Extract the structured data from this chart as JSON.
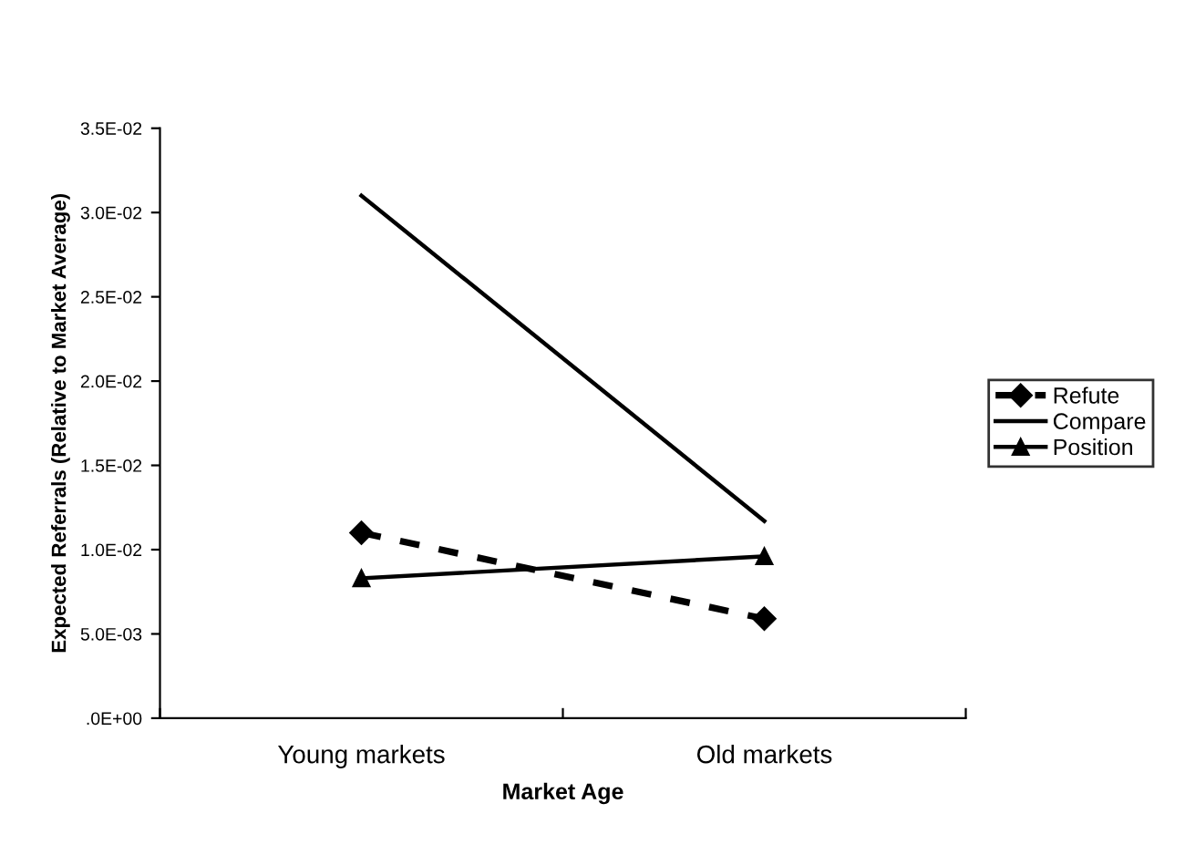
{
  "chart_data": {
    "type": "line",
    "xlabel": "Market Age",
    "ylabel": "Expected Referrals (Relative to Market Average)",
    "categories": [
      "Young markets",
      "Old markets"
    ],
    "series": [
      {
        "name": "Refute",
        "color": "#000000",
        "values": [
          0.011,
          0.0059
        ],
        "marker": "diamond",
        "line_style": "dashed"
      },
      {
        "name": "Compare",
        "color": "#000000",
        "values": [
          0.031,
          0.0117
        ],
        "marker": "none",
        "line_style": "solid"
      },
      {
        "name": "Position",
        "color": "#000000",
        "values": [
          0.0083,
          0.0096
        ],
        "marker": "triangle",
        "line_style": "solid"
      }
    ],
    "ylim": [
      0,
      0.035
    ],
    "yticks": [
      {
        "value": 0,
        "label": ".0E+00"
      },
      {
        "value": 0.005,
        "label": "5.0E-03"
      },
      {
        "value": 0.01,
        "label": "1.0E-02"
      },
      {
        "value": 0.015,
        "label": "1.5E-02"
      },
      {
        "value": 0.02,
        "label": "2.0E-02"
      },
      {
        "value": 0.025,
        "label": "2.5E-02"
      },
      {
        "value": 0.03,
        "label": "3.0E-02"
      },
      {
        "value": 0.035,
        "label": "3.5E-02"
      }
    ],
    "grid": false,
    "legend": "right"
  }
}
